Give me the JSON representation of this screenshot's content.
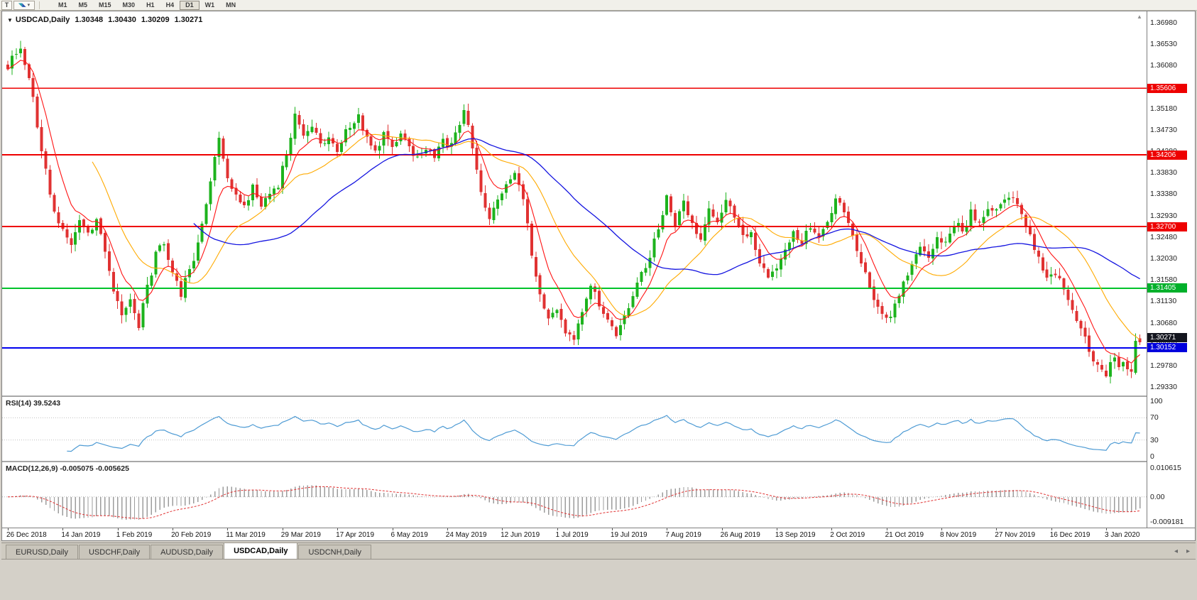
{
  "toolbar": {
    "chart_button_label": "T",
    "cursor_caret": "▾",
    "timeframes": [
      "M1",
      "M5",
      "M15",
      "M30",
      "H1",
      "H4",
      "D1",
      "W1",
      "MN"
    ],
    "active_timeframe": "D1"
  },
  "chart": {
    "collapse_arrow": "▼",
    "symbol": "USDCAD,Daily",
    "open": "1.30348",
    "high": "1.30430",
    "low": "1.30209",
    "close": "1.30271",
    "scroll_up_arrow": "▲",
    "price_axis_labels": [
      "1.36980",
      "1.36530",
      "1.36080",
      "1.35630",
      "1.35180",
      "1.34730",
      "1.34280",
      "1.33830",
      "1.33380",
      "1.32930",
      "1.32480",
      "1.32030",
      "1.31580",
      "1.31130",
      "1.30680",
      "1.30230",
      "1.29780",
      "1.29330"
    ],
    "horizontal_lines": [
      {
        "value": 1.35606,
        "label": "1.35606",
        "color": "#ee0000",
        "badge": "#ee0000",
        "width": 1.6
      },
      {
        "value": 1.34206,
        "label": "1.34206",
        "color": "#ee0000",
        "badge": "#ee0000",
        "width": 1.6
      },
      {
        "value": 1.327,
        "label": "1.32700",
        "color": "#ee0000",
        "badge": "#ee0000",
        "width": 1.8
      },
      {
        "value": 1.31405,
        "label": "1.31405",
        "color": "#00c22b",
        "badge": "#00b02a",
        "width": 2
      },
      {
        "value": 1.30152,
        "label": "1.30152",
        "color": "#0000ee",
        "badge": "#0000dd",
        "width": 2.2
      }
    ],
    "current_price": {
      "value": 1.30271,
      "label": "1.30271",
      "badge": "#14161f"
    },
    "colors": {
      "up": "#1db31d",
      "down": "#e03232",
      "ma_fast": "#ff1414",
      "ma_mid": "#ffaa00",
      "ma_slow": "#1414e0"
    },
    "chart_data": {
      "type": "candlestick",
      "count": 269,
      "close_anchors": [
        [
          0,
          1.36
        ],
        [
          2,
          1.364
        ],
        [
          3,
          1.3645
        ],
        [
          5,
          1.359
        ],
        [
          7,
          1.348
        ],
        [
          9,
          1.339
        ],
        [
          11,
          1.33
        ],
        [
          13,
          1.327
        ],
        [
          15,
          1.323
        ],
        [
          17,
          1.328
        ],
        [
          19,
          1.325
        ],
        [
          21,
          1.329
        ],
        [
          23,
          1.321
        ],
        [
          25,
          1.313
        ],
        [
          27,
          1.308
        ],
        [
          29,
          1.311
        ],
        [
          31,
          1.3065
        ],
        [
          33,
          1.314
        ],
        [
          35,
          1.321
        ],
        [
          37,
          1.324
        ],
        [
          39,
          1.317
        ],
        [
          41,
          1.313
        ],
        [
          43,
          1.318
        ],
        [
          45,
          1.323
        ],
        [
          47,
          1.331
        ],
        [
          49,
          1.342
        ],
        [
          50,
          1.345
        ],
        [
          52,
          1.337
        ],
        [
          54,
          1.333
        ],
        [
          56,
          1.331
        ],
        [
          58,
          1.335
        ],
        [
          60,
          1.331
        ],
        [
          62,
          1.334
        ],
        [
          64,
          1.336
        ],
        [
          66,
          1.342
        ],
        [
          68,
          1.35
        ],
        [
          70,
          1.346
        ],
        [
          72,
          1.348
        ],
        [
          74,
          1.344
        ],
        [
          76,
          1.3455
        ],
        [
          78,
          1.343
        ],
        [
          80,
          1.347
        ],
        [
          82,
          1.349
        ],
        [
          83,
          1.3505
        ],
        [
          85,
          1.345
        ],
        [
          87,
          1.343
        ],
        [
          89,
          1.346
        ],
        [
          91,
          1.344
        ],
        [
          93,
          1.347
        ],
        [
          95,
          1.344
        ],
        [
          97,
          1.341
        ],
        [
          99,
          1.344
        ],
        [
          101,
          1.342
        ],
        [
          103,
          1.345
        ],
        [
          105,
          1.344
        ],
        [
          107,
          1.349
        ],
        [
          108,
          1.352
        ],
        [
          110,
          1.343
        ],
        [
          112,
          1.334
        ],
        [
          114,
          1.329
        ],
        [
          116,
          1.332
        ],
        [
          118,
          1.336
        ],
        [
          120,
          1.339
        ],
        [
          122,
          1.333
        ],
        [
          124,
          1.321
        ],
        [
          126,
          1.313
        ],
        [
          128,
          1.308
        ],
        [
          130,
          1.309
        ],
        [
          132,
          1.305
        ],
        [
          134,
          1.304
        ],
        [
          136,
          1.309
        ],
        [
          138,
          1.314
        ],
        [
          140,
          1.311
        ],
        [
          142,
          1.307
        ],
        [
          144,
          1.3045
        ],
        [
          146,
          1.308
        ],
        [
          148,
          1.313
        ],
        [
          150,
          1.317
        ],
        [
          152,
          1.321
        ],
        [
          154,
          1.327
        ],
        [
          156,
          1.333
        ],
        [
          158,
          1.328
        ],
        [
          160,
          1.332
        ],
        [
          162,
          1.328
        ],
        [
          164,
          1.324
        ],
        [
          166,
          1.33
        ],
        [
          168,
          1.328
        ],
        [
          170,
          1.332
        ],
        [
          172,
          1.329
        ],
        [
          174,
          1.326
        ],
        [
          176,
          1.325
        ],
        [
          178,
          1.32
        ],
        [
          180,
          1.316
        ],
        [
          182,
          1.318
        ],
        [
          184,
          1.323
        ],
        [
          186,
          1.326
        ],
        [
          188,
          1.324
        ],
        [
          190,
          1.327
        ],
        [
          192,
          1.324
        ],
        [
          194,
          1.328
        ],
        [
          196,
          1.333
        ],
        [
          198,
          1.33
        ],
        [
          200,
          1.325
        ],
        [
          202,
          1.319
        ],
        [
          204,
          1.314
        ],
        [
          206,
          1.31
        ],
        [
          208,
          1.307
        ],
        [
          210,
          1.31
        ],
        [
          212,
          1.315
        ],
        [
          214,
          1.32
        ],
        [
          216,
          1.323
        ],
        [
          218,
          1.321
        ],
        [
          220,
          1.325
        ],
        [
          222,
          1.324
        ],
        [
          224,
          1.328
        ],
        [
          226,
          1.326
        ],
        [
          228,
          1.33
        ],
        [
          230,
          1.328
        ],
        [
          232,
          1.331
        ],
        [
          234,
          1.33
        ],
        [
          236,
          1.332
        ],
        [
          238,
          1.333
        ],
        [
          240,
          1.329
        ],
        [
          242,
          1.325
        ],
        [
          244,
          1.32
        ],
        [
          246,
          1.316
        ],
        [
          248,
          1.317
        ],
        [
          250,
          1.314
        ],
        [
          252,
          1.31
        ],
        [
          254,
          1.306
        ],
        [
          256,
          1.301
        ],
        [
          258,
          1.2975
        ],
        [
          260,
          1.2955
        ],
        [
          261,
          1.2985
        ],
        [
          262,
          1.2995
        ],
        [
          263,
          1.2975
        ],
        [
          264,
          1.2985
        ],
        [
          265,
          1.297
        ],
        [
          266,
          1.2965
        ],
        [
          267,
          1.303
        ],
        [
          268,
          1.30271
        ]
      ],
      "last_ohlc": [
        1.30348,
        1.3043,
        1.30209,
        1.30271
      ],
      "moving_average_periods": {
        "fast": 8,
        "mid": 21,
        "slow": 45
      }
    }
  },
  "rsi": {
    "label": "RSI(14) 39.5243",
    "period": 14,
    "axis_labels": [
      "100",
      "70",
      "30",
      "0"
    ],
    "levels": [
      70,
      30
    ],
    "color": "#4e9bd4"
  },
  "macd": {
    "label": "MACD(12,26,9) -0.005075 -0.005625",
    "axis_labels": [
      "0.010615",
      "0.00",
      "-0.009181"
    ],
    "axis_top": 0.010615,
    "axis_bottom": -0.009181,
    "hist_color": "#9c9c9c",
    "signal_color": "#e03232"
  },
  "time_axis": {
    "labels": [
      "26 Dec 2018",
      "14 Jan 2019",
      "1 Feb 2019",
      "20 Feb 2019",
      "11 Mar 2019",
      "29 Mar 2019",
      "17 Apr 2019",
      "6 May 2019",
      "24 May 2019",
      "12 Jun 2019",
      "1 Jul 2019",
      "19 Jul 2019",
      "7 Aug 2019",
      "26 Aug 2019",
      "13 Sep 2019",
      "2 Oct 2019",
      "21 Oct 2019",
      "8 Nov 2019",
      "27 Nov 2019",
      "16 Dec 2019",
      "3 Jan 2020"
    ],
    "candles_per_tick": 13
  },
  "tabs": {
    "items": [
      "EURUSD,Daily",
      "USDCHF,Daily",
      "AUDUSD,Daily",
      "USDCAD,Daily",
      "USDCNH,Daily"
    ],
    "active": "USDCAD,Daily",
    "scroll_left": "◂",
    "scroll_right": "▸"
  }
}
